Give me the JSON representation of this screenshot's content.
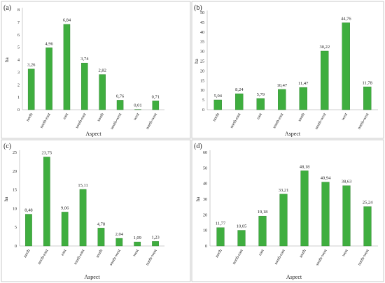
{
  "chart_data": [
    {
      "panel_label": "(a)",
      "type": "bar",
      "categories": [
        "north",
        "north-east",
        "east",
        "south-east",
        "south",
        "south-west",
        "west",
        "north-west"
      ],
      "values": [
        3.26,
        4.96,
        6.84,
        3.74,
        2.82,
        0.76,
        0.01,
        0.71
      ],
      "value_labels": [
        "3,26",
        "4,96",
        "6,84",
        "3,74",
        "2,82",
        "0,76",
        "0,01",
        "0,71"
      ],
      "ylabel": "ha",
      "xlabel": "Aspect",
      "ylim": [
        0,
        8
      ],
      "yticks": [
        0,
        1,
        2,
        3,
        4,
        5,
        6,
        7,
        8
      ],
      "bar_color": "#3fae3f",
      "grid": false
    },
    {
      "panel_label": "(b)",
      "type": "bar",
      "categories": [
        "north",
        "north-east",
        "east",
        "south-east",
        "south",
        "south-west",
        "west",
        "north-west"
      ],
      "values": [
        5.04,
        8.24,
        5.79,
        10.47,
        11.47,
        30.22,
        44.76,
        11.78
      ],
      "value_labels": [
        "5,04",
        "8,24",
        "5,79",
        "10,47",
        "11,47",
        "30,22",
        "44,76",
        "11,78"
      ],
      "ylabel": "ha",
      "xlabel": "Aspect",
      "ylim": [
        0,
        50
      ],
      "yticks": [
        0,
        5,
        10,
        15,
        20,
        25,
        30,
        35,
        40,
        45,
        50
      ],
      "bar_color": "#3fae3f",
      "grid": false
    },
    {
      "panel_label": "(c)",
      "type": "bar",
      "categories": [
        "north",
        "north-east",
        "east",
        "south-east",
        "south",
        "south-west",
        "west",
        "north-west"
      ],
      "values": [
        8.48,
        23.75,
        9.06,
        15.11,
        4.78,
        2.04,
        1.09,
        1.23
      ],
      "value_labels": [
        "8,48",
        "23,75",
        "9,06",
        "15,11",
        "4,78",
        "2,04",
        "1,09",
        "1,23"
      ],
      "ylabel": "ha",
      "xlabel": "Aspect",
      "ylim": [
        0,
        25
      ],
      "yticks": [
        0,
        5,
        10,
        15,
        20,
        25
      ],
      "bar_color": "#3fae3f",
      "grid": false
    },
    {
      "panel_label": "(d)",
      "type": "bar",
      "categories": [
        "north",
        "north-east",
        "east",
        "south-east",
        "south",
        "south-west",
        "west",
        "north-west"
      ],
      "values": [
        11.77,
        10.05,
        19.18,
        33.21,
        48.18,
        40.94,
        38.63,
        25.24
      ],
      "value_labels": [
        "11,77",
        "10,05",
        "19,18",
        "33,21",
        "48,18",
        "40,94",
        "38,63",
        "25,24"
      ],
      "ylabel": "ha",
      "xlabel": "Aspect",
      "ylim": [
        0,
        60
      ],
      "yticks": [
        0,
        10,
        20,
        30,
        40,
        50,
        60
      ],
      "bar_color": "#3fae3f",
      "grid": false
    }
  ]
}
